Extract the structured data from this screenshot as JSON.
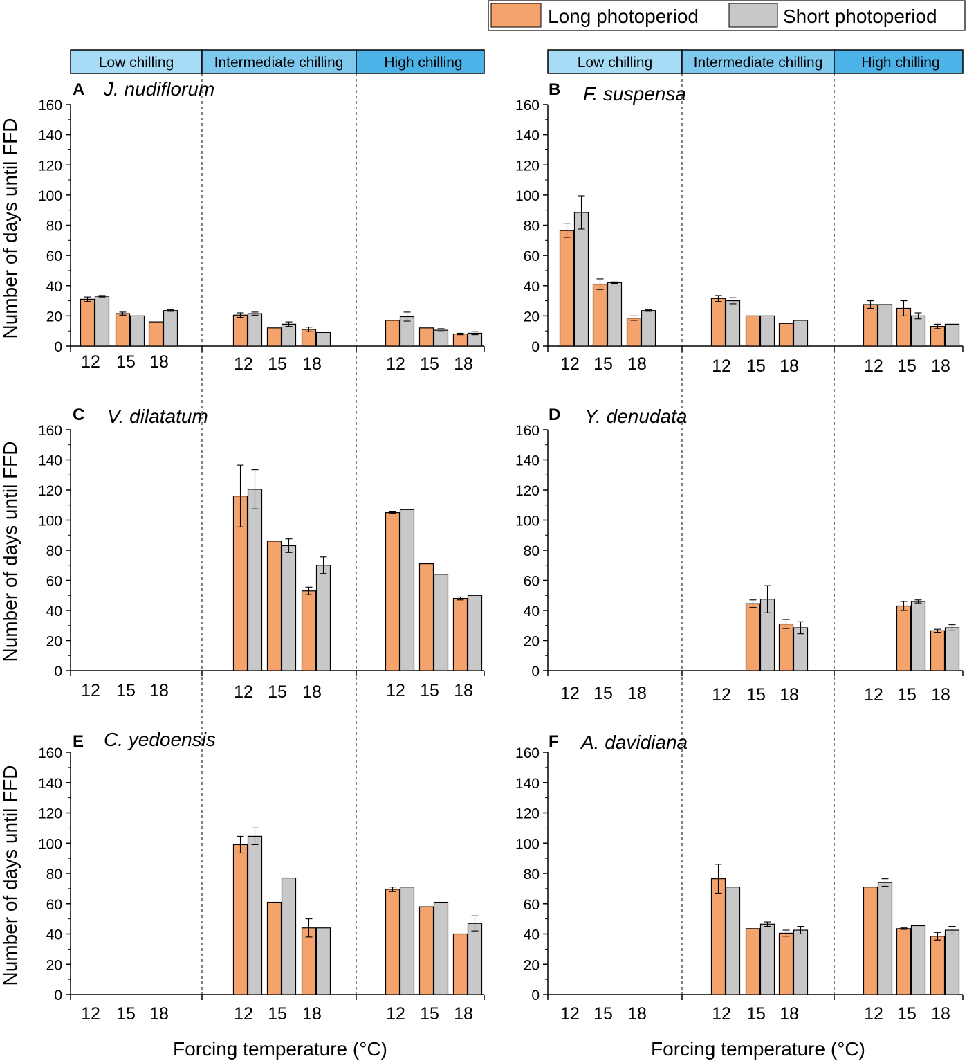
{
  "legend": {
    "long_label": "Long photoperiod",
    "short_label": "Short photoperiod",
    "long_color": "#f4a36d",
    "short_color": "#c8c8c8"
  },
  "chilling_bands": [
    {
      "label": "Low chilling",
      "color": "#a6dcf5"
    },
    {
      "label": "Intermediate chilling",
      "color": "#7fc8ee"
    },
    {
      "label": "High chilling",
      "color": "#4cb3e8"
    }
  ],
  "y_axis_title": "Number of days until FFD",
  "x_axis_title": "Forcing temperature (°C)",
  "chart_data": [
    {
      "type": "bar",
      "letter": "A",
      "title": "J. nudiflorum",
      "ylim": [
        0,
        160
      ],
      "yticks": [
        0,
        20,
        40,
        60,
        80,
        100,
        120,
        140,
        160
      ],
      "groups": [
        "Low chilling",
        "Intermediate chilling",
        "High chilling"
      ],
      "temps": [
        "12",
        "15",
        "18"
      ],
      "long": [
        [
          31,
          21.5,
          16
        ],
        [
          20.5,
          12,
          11
        ],
        [
          17,
          12,
          8
        ]
      ],
      "long_err": [
        [
          1.5,
          1,
          0
        ],
        [
          1.5,
          0,
          1.5
        ],
        [
          0,
          0,
          0.5
        ]
      ],
      "short": [
        [
          33,
          20,
          23.5
        ],
        [
          21.5,
          14.5,
          9
        ],
        [
          19.5,
          10.5,
          8.5
        ]
      ],
      "short_err": [
        [
          0.5,
          0,
          0.5
        ],
        [
          1,
          1.5,
          0
        ],
        [
          3,
          1,
          1
        ]
      ]
    },
    {
      "type": "bar",
      "letter": "B",
      "title": "F. suspensa",
      "ylim": [
        0,
        160
      ],
      "yticks": [
        0,
        20,
        40,
        60,
        80,
        100,
        120,
        140,
        160
      ],
      "groups": [
        "Low chilling",
        "Intermediate chilling",
        "High chilling"
      ],
      "temps": [
        "12",
        "15",
        "18"
      ],
      "long": [
        [
          76.5,
          41,
          18.5
        ],
        [
          31.5,
          20,
          15
        ],
        [
          27.5,
          25,
          13
        ]
      ],
      "long_err": [
        [
          4.5,
          3.5,
          1.5
        ],
        [
          2,
          0,
          0
        ],
        [
          2.5,
          5,
          1.5
        ]
      ],
      "short": [
        [
          88.5,
          42,
          23.5
        ],
        [
          30,
          20,
          17
        ],
        [
          27.5,
          20,
          14.5
        ]
      ],
      "short_err": [
        [
          11,
          0.5,
          0.5
        ],
        [
          2,
          0,
          0
        ],
        [
          0,
          2,
          0
        ]
      ]
    },
    {
      "type": "bar",
      "letter": "C",
      "title": "V. dilatatum",
      "ylim": [
        0,
        160
      ],
      "yticks": [
        0,
        20,
        40,
        60,
        80,
        100,
        120,
        140,
        160
      ],
      "groups": [
        "Low chilling",
        "Intermediate chilling",
        "High chilling"
      ],
      "temps": [
        "12",
        "15",
        "18"
      ],
      "long": [
        [
          0,
          0,
          0
        ],
        [
          116,
          86,
          53
        ],
        [
          105,
          71,
          48
        ]
      ],
      "long_err": [
        [
          0,
          0,
          0
        ],
        [
          20.5,
          0,
          2.5
        ],
        [
          0.5,
          0,
          1
        ]
      ],
      "short": [
        [
          0,
          0,
          0
        ],
        [
          120.5,
          83,
          70
        ],
        [
          107,
          64,
          50
        ]
      ],
      "short_err": [
        [
          0,
          0,
          0
        ],
        [
          13,
          4.5,
          5.5
        ],
        [
          0,
          0,
          0
        ]
      ]
    },
    {
      "type": "bar",
      "letter": "D",
      "title": "Y. denudata",
      "ylim": [
        0,
        160
      ],
      "yticks": [
        0,
        20,
        40,
        60,
        80,
        100,
        120,
        140,
        160
      ],
      "groups": [
        "Low chilling",
        "Intermediate chilling",
        "High chilling"
      ],
      "temps": [
        "12",
        "15",
        "18"
      ],
      "long": [
        [
          0,
          0,
          0
        ],
        [
          0,
          44.5,
          31
        ],
        [
          0,
          43,
          26.5
        ]
      ],
      "long_err": [
        [
          0,
          0,
          0
        ],
        [
          0,
          2.5,
          3
        ],
        [
          0,
          3,
          1
        ]
      ],
      "short": [
        [
          0,
          0,
          0
        ],
        [
          0,
          47.5,
          28.5
        ],
        [
          0,
          46,
          28.5
        ]
      ],
      "short_err": [
        [
          0,
          0,
          0
        ],
        [
          0,
          9,
          4
        ],
        [
          0,
          1,
          2
        ]
      ]
    },
    {
      "type": "bar",
      "letter": "E",
      "title": "C. yedoensis",
      "ylim": [
        0,
        160
      ],
      "yticks": [
        0,
        20,
        40,
        60,
        80,
        100,
        120,
        140,
        160
      ],
      "groups": [
        "Low chilling",
        "Intermediate chilling",
        "High chilling"
      ],
      "temps": [
        "12",
        "15",
        "18"
      ],
      "long": [
        [
          0,
          0,
          0
        ],
        [
          99,
          61,
          44
        ],
        [
          69.5,
          58,
          40
        ]
      ],
      "long_err": [
        [
          0,
          0,
          0
        ],
        [
          5.5,
          0,
          6
        ],
        [
          1.5,
          0,
          0
        ]
      ],
      "short": [
        [
          0,
          0,
          0
        ],
        [
          104.5,
          77,
          44
        ],
        [
          71,
          61,
          47
        ]
      ],
      "short_err": [
        [
          0,
          0,
          0
        ],
        [
          5.5,
          0,
          0
        ],
        [
          0,
          0,
          5
        ]
      ]
    },
    {
      "type": "bar",
      "letter": "F",
      "title": "A. davidiana",
      "ylim": [
        0,
        160
      ],
      "yticks": [
        0,
        20,
        40,
        60,
        80,
        100,
        120,
        140,
        160
      ],
      "groups": [
        "Low chilling",
        "Intermediate chilling",
        "High chilling"
      ],
      "temps": [
        "12",
        "15",
        "18"
      ],
      "long": [
        [
          0,
          0,
          0
        ],
        [
          76.5,
          43.5,
          40.5
        ],
        [
          71,
          43.5,
          38.5
        ]
      ],
      "long_err": [
        [
          0,
          0,
          0
        ],
        [
          9.5,
          0,
          2
        ],
        [
          0,
          0.5,
          2.5
        ]
      ],
      "short": [
        [
          0,
          0,
          0
        ],
        [
          71,
          46.5,
          42.5
        ],
        [
          74,
          45.5,
          42.5
        ]
      ],
      "short_err": [
        [
          0,
          0,
          0
        ],
        [
          0,
          1.5,
          2.5
        ],
        [
          2.5,
          0,
          2.5
        ]
      ]
    }
  ]
}
